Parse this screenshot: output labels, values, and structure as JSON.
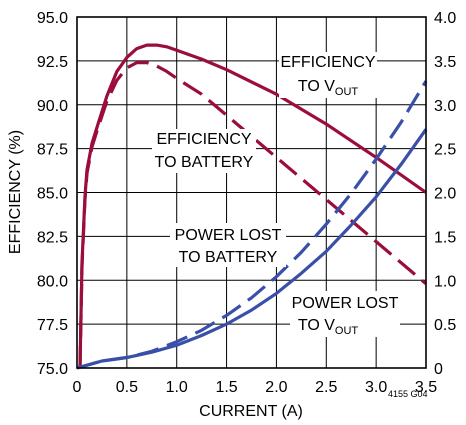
{
  "chart_data": {
    "type": "line",
    "figure_id": "4155 G04",
    "xlabel": "CURRENT (A)",
    "ylabel_left": "EFFICIENCY (%)",
    "ylabel_right": "",
    "xlim": [
      0,
      3.5
    ],
    "ylim_left": [
      75,
      95
    ],
    "ylim_right": [
      0,
      4
    ],
    "x_ticks": [
      "0",
      "0.5",
      "1.0",
      "1.5",
      "2.0",
      "2.5",
      "3.0",
      "3.5"
    ],
    "y_left_ticks": [
      "75.0",
      "77.5",
      "80.0",
      "82.5",
      "85.0",
      "87.5",
      "90.0",
      "92.5",
      "95.0"
    ],
    "y_right_ticks": [
      "0",
      "0.5",
      "1.0",
      "1.5",
      "2.0",
      "2.5",
      "3.0",
      "3.5",
      "4.0"
    ],
    "grid": true,
    "colors": {
      "efficiency": "#9b0d3a",
      "power": "#3a4fa8",
      "grid": "#000000"
    },
    "series": [
      {
        "axis": "left",
        "style": "solid",
        "color": "#9b0d3a",
        "x": [
          0.03,
          0.05,
          0.08,
          0.1,
          0.15,
          0.2,
          0.3,
          0.4,
          0.5,
          0.6,
          0.7,
          0.8,
          0.9,
          1.0,
          1.25,
          1.5,
          2.0,
          2.5,
          3.0,
          3.5
        ],
        "y": [
          75.0,
          81.0,
          84.8,
          86.3,
          87.8,
          88.7,
          90.5,
          91.9,
          92.7,
          93.2,
          93.4,
          93.4,
          93.3,
          93.1,
          92.6,
          92.0,
          90.6,
          88.9,
          87.0,
          85.0
        ]
      },
      {
        "axis": "left",
        "style": "dashed",
        "color": "#9b0d3a",
        "x": [
          0.03,
          0.05,
          0.08,
          0.1,
          0.15,
          0.2,
          0.3,
          0.4,
          0.5,
          0.6,
          0.7,
          0.8,
          0.9,
          1.0,
          1.25,
          1.5,
          2.0,
          2.5,
          3.0,
          3.5
        ],
        "y": [
          75.0,
          80.8,
          84.6,
          86.1,
          87.6,
          88.5,
          90.2,
          91.4,
          92.1,
          92.4,
          92.4,
          92.2,
          91.9,
          91.5,
          90.6,
          89.4,
          87.0,
          84.6,
          82.2,
          79.8
        ]
      },
      {
        "axis": "right",
        "style": "solid",
        "color": "#3a4fa8",
        "x": [
          0,
          0.25,
          0.5,
          0.75,
          1.0,
          1.25,
          1.5,
          1.75,
          2.0,
          2.25,
          2.5,
          2.75,
          3.0,
          3.25,
          3.5
        ],
        "y": [
          0.0,
          0.08,
          0.12,
          0.18,
          0.26,
          0.37,
          0.5,
          0.66,
          0.85,
          1.08,
          1.33,
          1.63,
          1.95,
          2.32,
          2.72
        ]
      },
      {
        "axis": "right",
        "style": "dashed",
        "color": "#3a4fa8",
        "x": [
          0,
          0.25,
          0.5,
          0.75,
          1.0,
          1.25,
          1.5,
          1.75,
          2.0,
          2.25,
          2.5,
          2.75,
          3.0,
          3.25,
          3.5
        ],
        "y": [
          0.0,
          0.08,
          0.12,
          0.19,
          0.3,
          0.43,
          0.6,
          0.8,
          1.04,
          1.32,
          1.64,
          1.99,
          2.38,
          2.8,
          3.27
        ]
      }
    ],
    "annotations": {
      "eff_vout": {
        "line1": "EFFICIENCY",
        "line2_main": "TO V",
        "line2_sub": "OUT"
      },
      "eff_batt": {
        "line1": "EFFICIENCY",
        "line2": "TO BATTERY"
      },
      "pl_batt": {
        "line1": "POWER LOST",
        "line2": "TO BATTERY"
      },
      "pl_vout": {
        "line1": "POWER LOST",
        "line2_main": "TO V",
        "line2_sub": "OUT"
      }
    }
  }
}
